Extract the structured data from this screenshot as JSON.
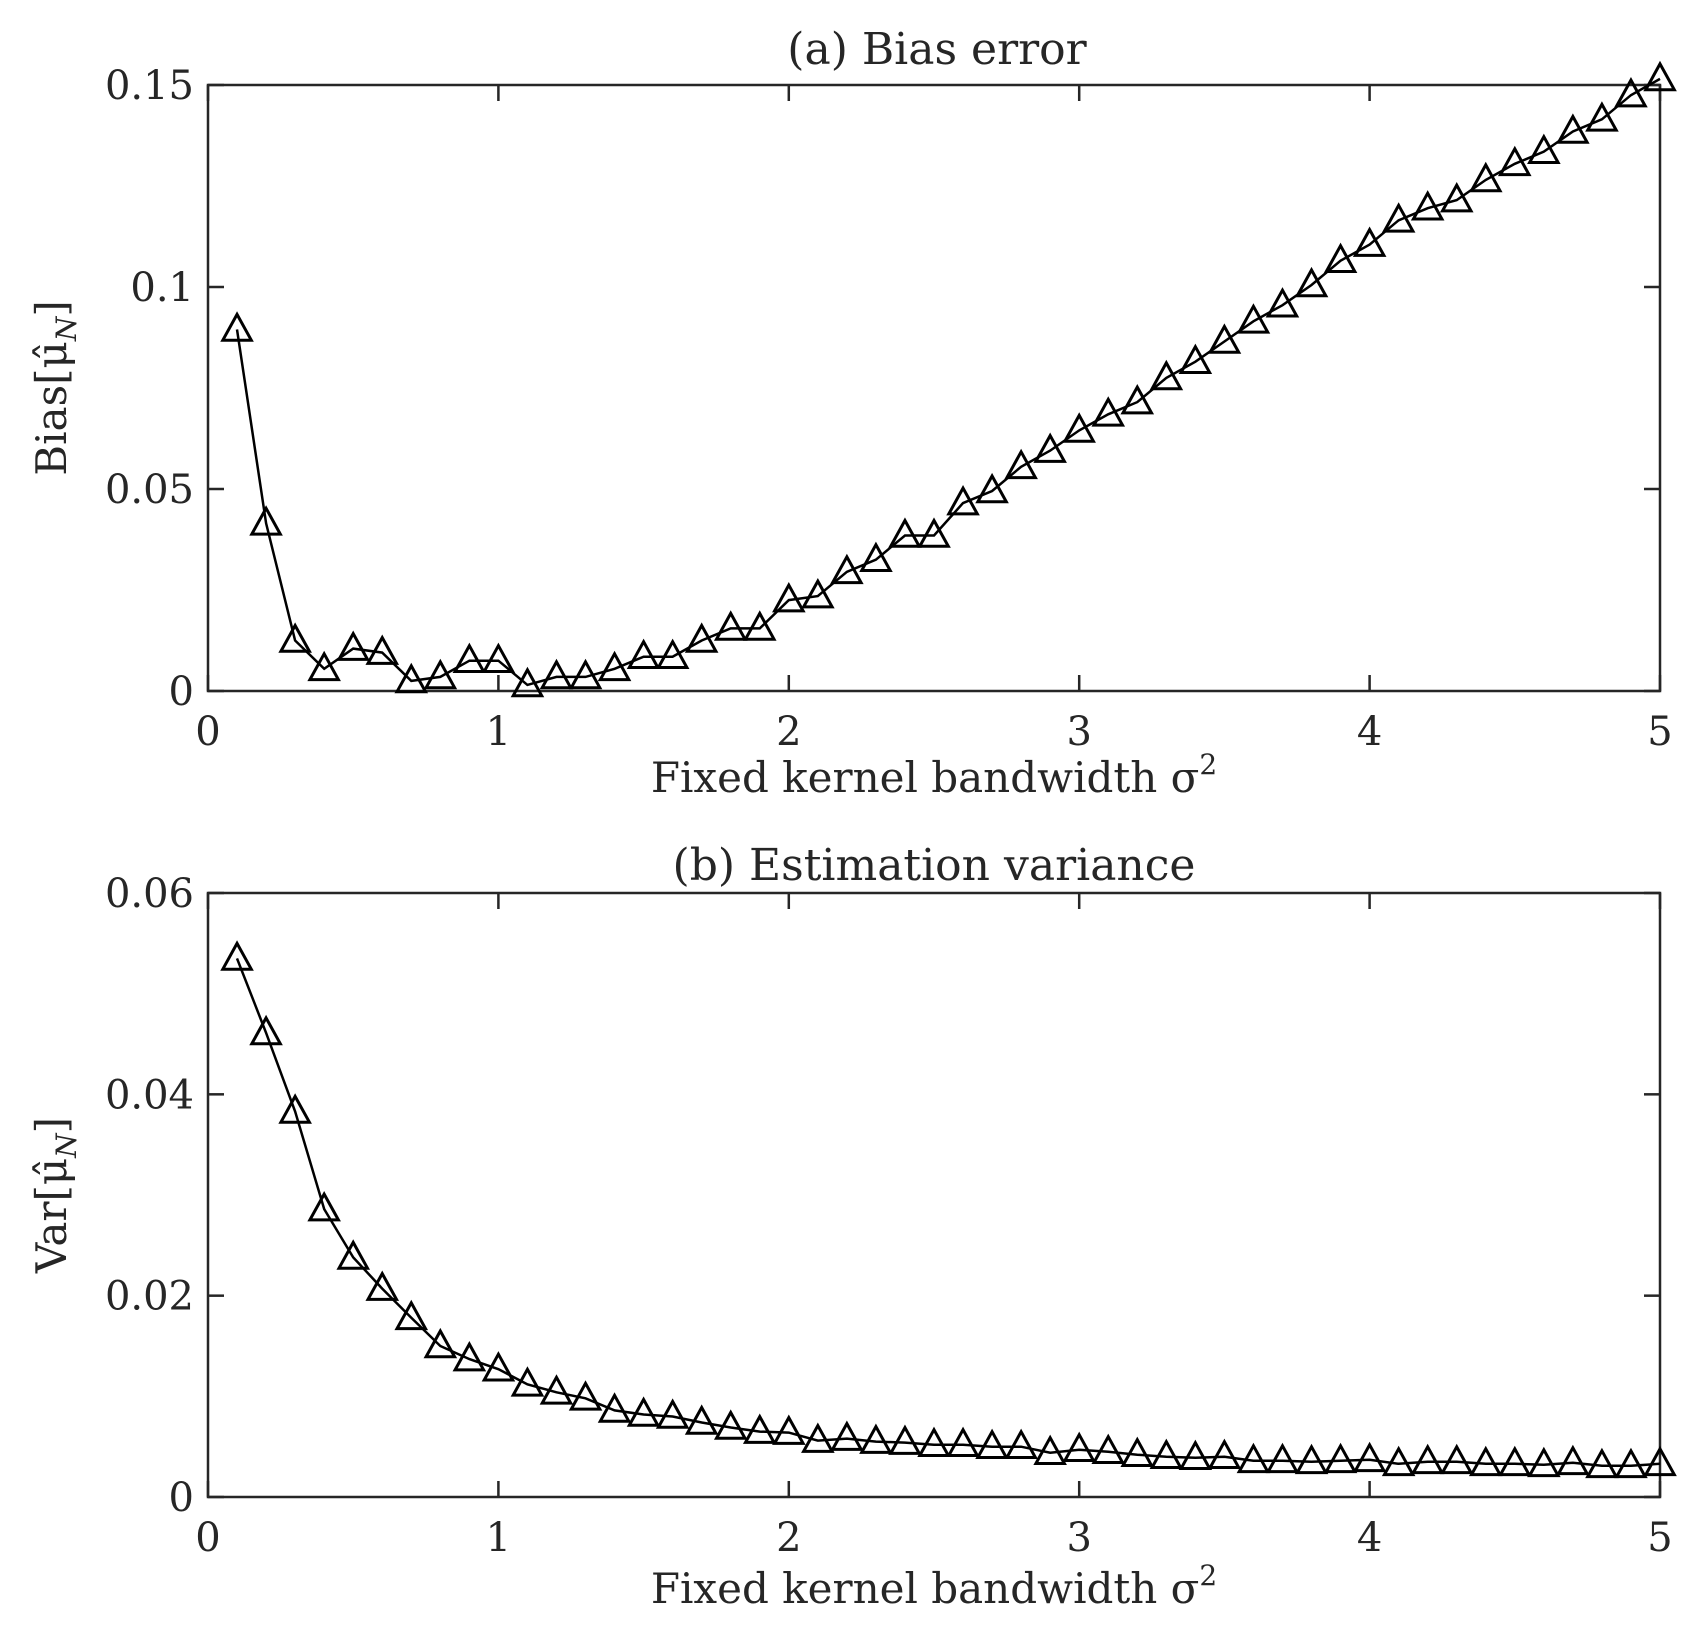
{
  "chart_data": [
    {
      "type": "line",
      "title": "(a) Bias error",
      "xlabel": "Fixed kernel bandwidth σ",
      "xlabel_sup": "2",
      "ylabel": "Bias[μ̂",
      "ylabel_sub": "N",
      "ylabel_close": "]",
      "xlim": [
        0,
        5
      ],
      "ylim": [
        0,
        0.15
      ],
      "xticks": [
        0,
        1,
        2,
        3,
        4,
        5
      ],
      "xtick_labels": [
        "0",
        "1",
        "2",
        "3",
        "4",
        "5"
      ],
      "yticks": [
        0,
        0.05,
        0.1,
        0.15
      ],
      "ytick_labels": [
        "0",
        "0.05",
        "0.1",
        "0.15"
      ],
      "grid": false,
      "marker": "triangle",
      "color": "#000000",
      "x": [
        0.1,
        0.2,
        0.3,
        0.4,
        0.5,
        0.6,
        0.7,
        0.8,
        0.9,
        1.0,
        1.1,
        1.2,
        1.3,
        1.4,
        1.5,
        1.6,
        1.7,
        1.8,
        1.9,
        2.0,
        2.1,
        2.2,
        2.3,
        2.4,
        2.5,
        2.6,
        2.7,
        2.8,
        2.9,
        3.0,
        3.1,
        3.2,
        3.3,
        3.4,
        3.5,
        3.6,
        3.7,
        3.8,
        3.9,
        4.0,
        4.1,
        4.2,
        4.3,
        4.4,
        4.5,
        4.6,
        4.7,
        4.8,
        4.9,
        5.0
      ],
      "y": [
        0.0895,
        0.0415,
        0.0125,
        0.0055,
        0.0105,
        0.0095,
        0.0025,
        0.0035,
        0.0075,
        0.0075,
        0.0015,
        0.0035,
        0.0035,
        0.0055,
        0.0085,
        0.0085,
        0.0125,
        0.0155,
        0.0155,
        0.0225,
        0.0235,
        0.0295,
        0.0325,
        0.0385,
        0.0385,
        0.0465,
        0.0495,
        0.0555,
        0.0595,
        0.0645,
        0.0685,
        0.0715,
        0.0775,
        0.0815,
        0.0865,
        0.0915,
        0.0955,
        0.1005,
        0.1065,
        0.1105,
        0.1165,
        0.1195,
        0.1215,
        0.1265,
        0.1305,
        0.1335,
        0.1385,
        0.1415,
        0.1475,
        0.1515
      ]
    },
    {
      "type": "line",
      "title": "(b) Estimation variance",
      "xlabel": "Fixed kernel bandwidth σ",
      "xlabel_sup": "2",
      "ylabel": "Var[μ̂",
      "ylabel_sub": "N",
      "ylabel_close": "]",
      "xlim": [
        0,
        5
      ],
      "ylim": [
        0,
        0.06
      ],
      "xticks": [
        0,
        1,
        2,
        3,
        4,
        5
      ],
      "xtick_labels": [
        "0",
        "1",
        "2",
        "3",
        "4",
        "5"
      ],
      "yticks": [
        0,
        0.02,
        0.04,
        0.06
      ],
      "ytick_labels": [
        "0",
        "0.02",
        "0.04",
        "0.06"
      ],
      "grid": false,
      "marker": "triangle",
      "color": "#000000",
      "x": [
        0.1,
        0.2,
        0.3,
        0.4,
        0.5,
        0.6,
        0.7,
        0.8,
        0.9,
        1.0,
        1.1,
        1.2,
        1.3,
        1.4,
        1.5,
        1.6,
        1.7,
        1.8,
        1.9,
        2.0,
        2.1,
        2.2,
        2.3,
        2.4,
        2.5,
        2.6,
        2.7,
        2.8,
        2.9,
        3.0,
        3.1,
        3.2,
        3.3,
        3.4,
        3.5,
        3.6,
        3.7,
        3.8,
        3.9,
        4.0,
        4.1,
        4.2,
        4.3,
        4.4,
        4.5,
        4.6,
        4.7,
        4.8,
        4.9,
        5.0
      ],
      "y": [
        0.0535,
        0.0461,
        0.0383,
        0.0286,
        0.0238,
        0.0207,
        0.0178,
        0.015,
        0.0137,
        0.0127,
        0.0112,
        0.0104,
        0.0098,
        0.0086,
        0.0082,
        0.008,
        0.0074,
        0.0069,
        0.0065,
        0.0064,
        0.0056,
        0.0058,
        0.0055,
        0.0054,
        0.0052,
        0.0052,
        0.005,
        0.005,
        0.0044,
        0.0047,
        0.0045,
        0.0042,
        0.004,
        0.0039,
        0.004,
        0.0036,
        0.0036,
        0.0035,
        0.0036,
        0.0037,
        0.0033,
        0.0035,
        0.0035,
        0.0033,
        0.0033,
        0.0032,
        0.0034,
        0.0031,
        0.0031,
        0.0033
      ]
    }
  ]
}
